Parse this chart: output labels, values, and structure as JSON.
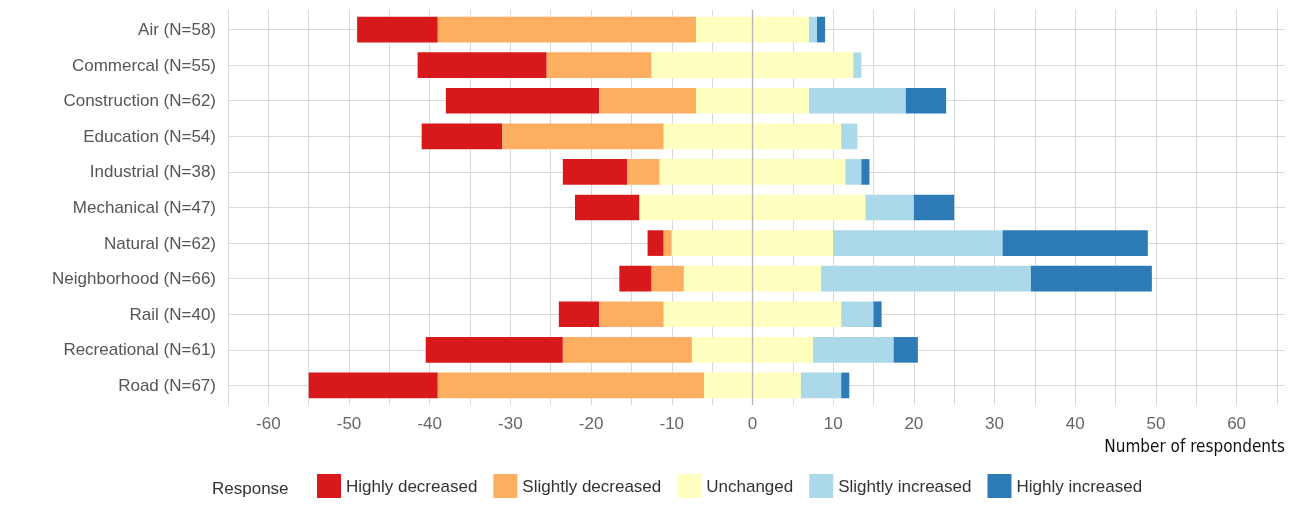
{
  "chart_data": {
    "type": "bar",
    "orientation": "horizontal",
    "xlabel": "Number of respondents",
    "legend_title": "Response",
    "categories": [
      "Air (N=58)",
      "Commercal (N=55)",
      "Construction (N=62)",
      "Education (N=54)",
      "Industrial (N=38)",
      "Mechanical (N=47)",
      "Natural (N=62)",
      "Neighborhood (N=66)",
      "Rail (N=40)",
      "Recreational (N=61)",
      "Road (N=67)"
    ],
    "series": [
      {
        "name": "Highly decreased",
        "color": "#d7191c",
        "values": [
          10,
          16,
          19,
          10,
          8,
          8,
          2,
          4,
          5,
          17,
          16
        ],
        "base": [
          -49,
          -41.5,
          -38,
          -41,
          -23.5,
          -22,
          -13,
          -16.5,
          -24,
          -40.5,
          -55
        ]
      },
      {
        "name": "Slightly decreased",
        "color": "#fdae61",
        "values": [
          32,
          13,
          12,
          20,
          4,
          0,
          1,
          4,
          8,
          16,
          33
        ],
        "base": [
          -39,
          -25.5,
          -19,
          -31,
          -15.5,
          null,
          -11,
          -12.5,
          -19,
          -23.5,
          -39
        ]
      },
      {
        "name": "Unchanged",
        "color": "#ffffbf",
        "values": [
          14,
          25,
          14,
          22,
          23,
          28,
          20,
          17,
          22,
          15,
          12
        ],
        "base": [
          -7,
          -12.5,
          -7,
          -11,
          -11.5,
          -14,
          -10,
          -8.5,
          -11,
          -7.5,
          -6
        ]
      },
      {
        "name": "Slightly increased",
        "color": "#abd9e9",
        "values": [
          1,
          1,
          12,
          2,
          2,
          6,
          21,
          26,
          4,
          10,
          5
        ],
        "base": [
          7,
          12.5,
          7,
          11,
          11.5,
          14,
          10,
          8.5,
          11,
          7.5,
          6
        ]
      },
      {
        "name": "Highly increased",
        "color": "#2c7bb6",
        "values": [
          1,
          0,
          5,
          0,
          1,
          5,
          18,
          15,
          1,
          3,
          1
        ],
        "base": [
          8,
          null,
          19,
          null,
          13.5,
          20,
          31,
          34.5,
          15,
          17.5,
          11
        ]
      }
    ],
    "xlim": [
      -65,
      66
    ],
    "xticks": [
      {
        "value": -65,
        "label": null
      },
      -60,
      {
        "value": -55,
        "label": null
      },
      -50,
      {
        "value": -45,
        "label": null
      },
      -40,
      {
        "value": -35,
        "label": null
      },
      -30,
      {
        "value": -25,
        "label": null
      },
      -20,
      {
        "value": -15,
        "label": null
      },
      -10,
      {
        "value": -5,
        "label": null
      },
      0,
      {
        "value": 5,
        "label": null
      },
      10,
      {
        "value": 15,
        "label": null
      },
      20,
      {
        "value": 25,
        "label": null
      },
      30,
      {
        "value": 35,
        "label": null
      },
      40,
      {
        "value": 45,
        "label": null
      },
      50,
      {
        "value": 55,
        "label": null
      },
      60,
      {
        "value": 65,
        "label": null
      }
    ],
    "ref_lines": [
      {
        "axis": "x",
        "value": 0,
        "color": "#b5b5b5"
      }
    ],
    "grid": true,
    "legend": "bottom"
  }
}
